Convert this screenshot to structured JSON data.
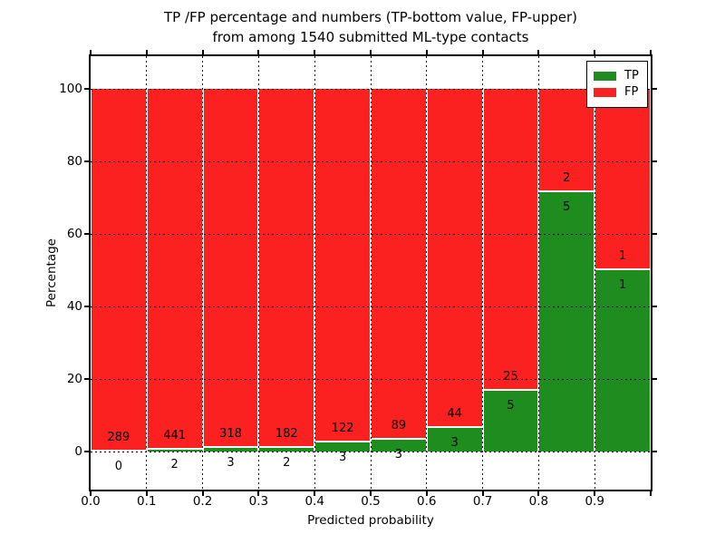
{
  "title": {
    "line1": "TP /FP percentage and numbers (TP-bottom value, FP-upper)",
    "line2": "from among 1540 submitted ML-type contacts"
  },
  "axes": {
    "xlabel": "Predicted probability",
    "ylabel": "Percentage",
    "x_tick_labels": [
      "0.0",
      "0.1",
      "0.2",
      "0.3",
      "0.4",
      "0.5",
      "0.6",
      "0.7",
      "0.8",
      "0.9"
    ],
    "y_tick_labels": [
      "0",
      "20",
      "40",
      "60",
      "80",
      "100"
    ],
    "xlim": [
      0.0,
      1.0
    ],
    "ylim": [
      -10.5,
      109
    ],
    "grid_style": "dotted"
  },
  "legend": {
    "position": "upper-right",
    "items": [
      {
        "label": "TP",
        "color": "#1f8c1f"
      },
      {
        "label": "FP",
        "color": "#fb2121"
      }
    ]
  },
  "colors": {
    "tp_green": "#1f8c1f",
    "fp_red": "#fb2121",
    "bar_edge": "#ffffff",
    "text": "#000000",
    "background": "#ffffff"
  },
  "chart_data": {
    "type": "bar",
    "stacked": true,
    "normalized": "percent-of-bin-total",
    "title": "TP /FP percentage and numbers (TP-bottom value, FP-upper) from among 1540 submitted ML-type contacts",
    "xlabel": "Predicted probability",
    "ylabel": "Percentage",
    "bin_width": 0.1,
    "bin_starts": [
      0.0,
      0.1,
      0.2,
      0.3,
      0.4,
      0.5,
      0.6,
      0.7,
      0.8,
      0.9
    ],
    "series": [
      {
        "name": "TP",
        "color": "#1f8c1f",
        "counts": [
          0,
          2,
          3,
          2,
          3,
          3,
          3,
          5,
          5,
          1
        ]
      },
      {
        "name": "FP",
        "color": "#fb2121",
        "counts": [
          289,
          441,
          318,
          182,
          122,
          89,
          44,
          25,
          2,
          1
        ]
      }
    ],
    "total_contacts": 1540,
    "annotation_rule": "FP count printed just above TP/FP boundary, TP count just below",
    "ylim": [
      -10.5,
      109
    ],
    "legend_position": "upper-right",
    "grid": true
  }
}
